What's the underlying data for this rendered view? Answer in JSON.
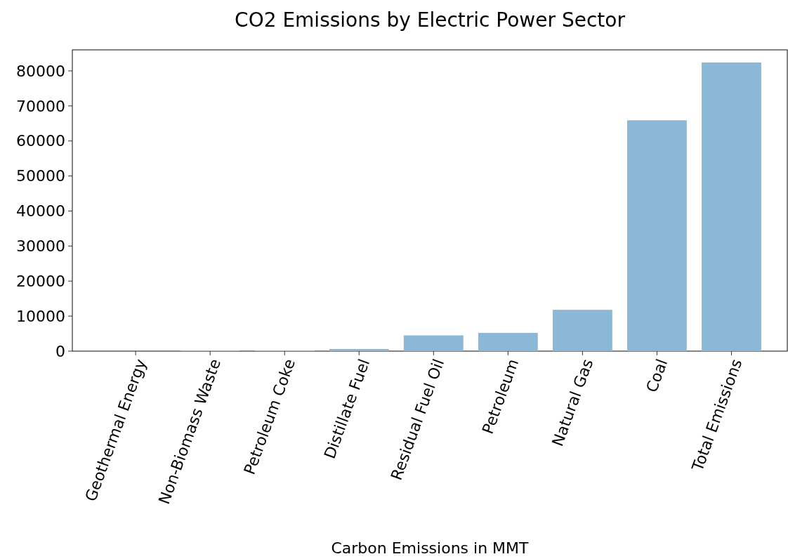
{
  "chart_data": {
    "type": "bar",
    "title": "CO2 Emissions by Electric Power Sector",
    "xlabel": "Carbon Emissions in MMT",
    "categories": [
      "Geothermal Energy",
      "Non-Biomass Waste",
      "Petroleum Coke",
      "Distillate Fuel",
      "Residual Fuel Oil",
      "Petroleum",
      "Natural Gas",
      "Coal",
      "Total Emissions"
    ],
    "values": [
      0,
      200,
      200,
      600,
      4500,
      5200,
      11800,
      65900,
      82400
    ],
    "color": "#8cb8d8",
    "ylim": [
      0,
      86000
    ],
    "yticks": [
      0,
      10000,
      20000,
      30000,
      40000,
      50000,
      60000,
      70000,
      80000
    ]
  }
}
